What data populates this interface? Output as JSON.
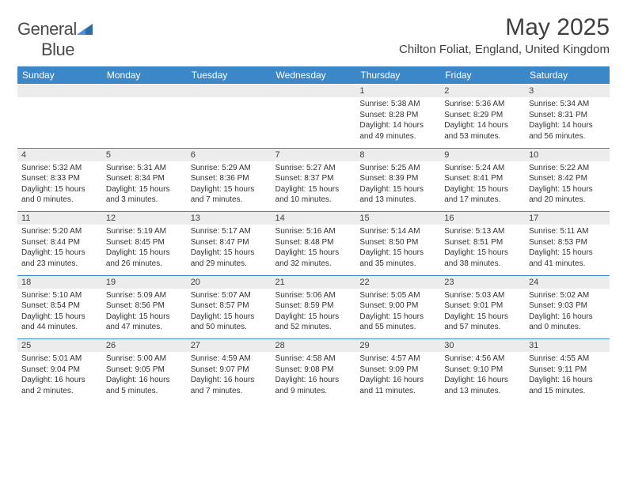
{
  "logo": {
    "word1": "General",
    "word2": "Blue"
  },
  "title": "May 2025",
  "location": "Chilton Foliat, England, United Kingdom",
  "colors": {
    "header_bg": "#3b87c8",
    "header_fg": "#ffffff",
    "daynum_bg": "#ececec",
    "text": "#333333",
    "rule": "#3b87c8"
  },
  "day_headers": [
    "Sunday",
    "Monday",
    "Tuesday",
    "Wednesday",
    "Thursday",
    "Friday",
    "Saturday"
  ],
  "weeks": [
    [
      null,
      null,
      null,
      null,
      {
        "n": "1",
        "sr": "5:38 AM",
        "ss": "8:28 PM",
        "dl": "14 hours and 49 minutes."
      },
      {
        "n": "2",
        "sr": "5:36 AM",
        "ss": "8:29 PM",
        "dl": "14 hours and 53 minutes."
      },
      {
        "n": "3",
        "sr": "5:34 AM",
        "ss": "8:31 PM",
        "dl": "14 hours and 56 minutes."
      }
    ],
    [
      {
        "n": "4",
        "sr": "5:32 AM",
        "ss": "8:33 PM",
        "dl": "15 hours and 0 minutes."
      },
      {
        "n": "5",
        "sr": "5:31 AM",
        "ss": "8:34 PM",
        "dl": "15 hours and 3 minutes."
      },
      {
        "n": "6",
        "sr": "5:29 AM",
        "ss": "8:36 PM",
        "dl": "15 hours and 7 minutes."
      },
      {
        "n": "7",
        "sr": "5:27 AM",
        "ss": "8:37 PM",
        "dl": "15 hours and 10 minutes."
      },
      {
        "n": "8",
        "sr": "5:25 AM",
        "ss": "8:39 PM",
        "dl": "15 hours and 13 minutes."
      },
      {
        "n": "9",
        "sr": "5:24 AM",
        "ss": "8:41 PM",
        "dl": "15 hours and 17 minutes."
      },
      {
        "n": "10",
        "sr": "5:22 AM",
        "ss": "8:42 PM",
        "dl": "15 hours and 20 minutes."
      }
    ],
    [
      {
        "n": "11",
        "sr": "5:20 AM",
        "ss": "8:44 PM",
        "dl": "15 hours and 23 minutes."
      },
      {
        "n": "12",
        "sr": "5:19 AM",
        "ss": "8:45 PM",
        "dl": "15 hours and 26 minutes."
      },
      {
        "n": "13",
        "sr": "5:17 AM",
        "ss": "8:47 PM",
        "dl": "15 hours and 29 minutes."
      },
      {
        "n": "14",
        "sr": "5:16 AM",
        "ss": "8:48 PM",
        "dl": "15 hours and 32 minutes."
      },
      {
        "n": "15",
        "sr": "5:14 AM",
        "ss": "8:50 PM",
        "dl": "15 hours and 35 minutes."
      },
      {
        "n": "16",
        "sr": "5:13 AM",
        "ss": "8:51 PM",
        "dl": "15 hours and 38 minutes."
      },
      {
        "n": "17",
        "sr": "5:11 AM",
        "ss": "8:53 PM",
        "dl": "15 hours and 41 minutes."
      }
    ],
    [
      {
        "n": "18",
        "sr": "5:10 AM",
        "ss": "8:54 PM",
        "dl": "15 hours and 44 minutes."
      },
      {
        "n": "19",
        "sr": "5:09 AM",
        "ss": "8:56 PM",
        "dl": "15 hours and 47 minutes."
      },
      {
        "n": "20",
        "sr": "5:07 AM",
        "ss": "8:57 PM",
        "dl": "15 hours and 50 minutes."
      },
      {
        "n": "21",
        "sr": "5:06 AM",
        "ss": "8:59 PM",
        "dl": "15 hours and 52 minutes."
      },
      {
        "n": "22",
        "sr": "5:05 AM",
        "ss": "9:00 PM",
        "dl": "15 hours and 55 minutes."
      },
      {
        "n": "23",
        "sr": "5:03 AM",
        "ss": "9:01 PM",
        "dl": "15 hours and 57 minutes."
      },
      {
        "n": "24",
        "sr": "5:02 AM",
        "ss": "9:03 PM",
        "dl": "16 hours and 0 minutes."
      }
    ],
    [
      {
        "n": "25",
        "sr": "5:01 AM",
        "ss": "9:04 PM",
        "dl": "16 hours and 2 minutes."
      },
      {
        "n": "26",
        "sr": "5:00 AM",
        "ss": "9:05 PM",
        "dl": "16 hours and 5 minutes."
      },
      {
        "n": "27",
        "sr": "4:59 AM",
        "ss": "9:07 PM",
        "dl": "16 hours and 7 minutes."
      },
      {
        "n": "28",
        "sr": "4:58 AM",
        "ss": "9:08 PM",
        "dl": "16 hours and 9 minutes."
      },
      {
        "n": "29",
        "sr": "4:57 AM",
        "ss": "9:09 PM",
        "dl": "16 hours and 11 minutes."
      },
      {
        "n": "30",
        "sr": "4:56 AM",
        "ss": "9:10 PM",
        "dl": "16 hours and 13 minutes."
      },
      {
        "n": "31",
        "sr": "4:55 AM",
        "ss": "9:11 PM",
        "dl": "16 hours and 15 minutes."
      }
    ]
  ],
  "labels": {
    "sunrise": "Sunrise:",
    "sunset": "Sunset:",
    "daylight": "Daylight:"
  }
}
